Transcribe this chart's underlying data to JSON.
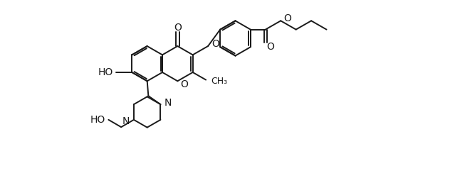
{
  "background_color": "#ffffff",
  "line_color": "#1a1a1a",
  "line_width": 1.4,
  "font_size": 9.5,
  "fig_width": 6.46,
  "fig_height": 2.58,
  "dpi": 100,
  "xlim": [
    0,
    13
  ],
  "ylim": [
    -2.5,
    5.0
  ]
}
